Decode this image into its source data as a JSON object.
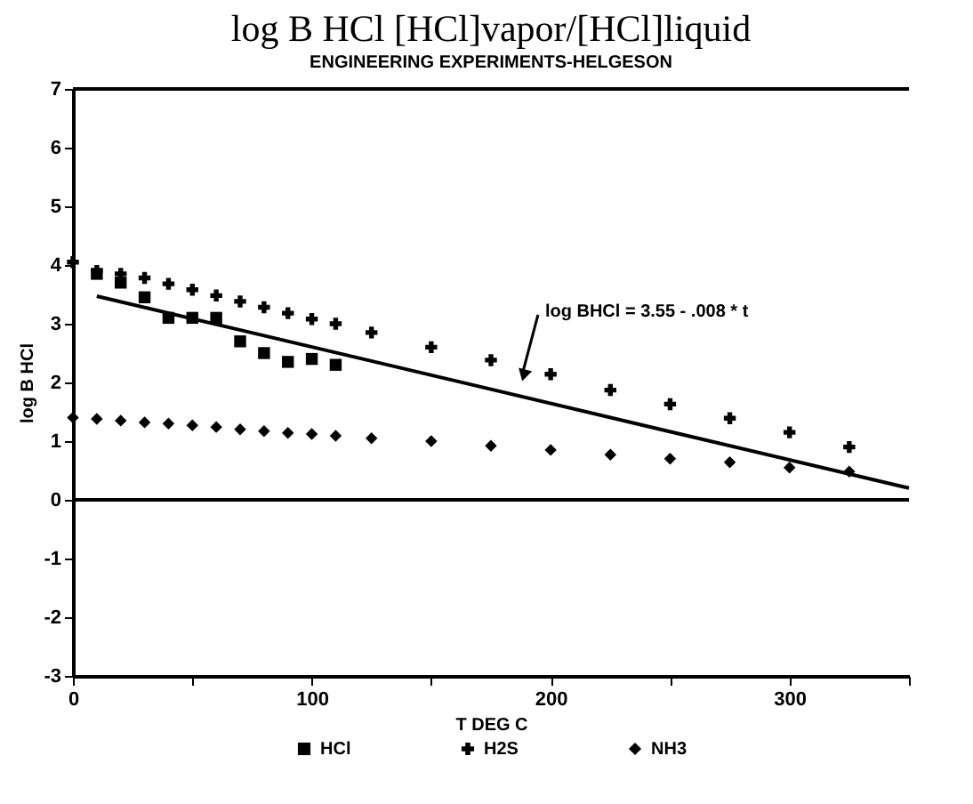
{
  "chart_data": {
    "type": "scatter",
    "title": "log B HCl    [HCl]vapor/[HCl]liquid",
    "subtitle": "ENGINEERING EXPERIMENTS-HELGESON",
    "xlabel": "T DEG C",
    "ylabel": "log B HCl",
    "annotations": [
      "log BHCl = 3.55 - .008 * t"
    ],
    "xlim": [
      0,
      350
    ],
    "xticks": [
      0,
      {
        "value": 50,
        "label": null
      },
      100,
      {
        "value": 150,
        "label": null
      },
      200,
      {
        "value": 250,
        "label": null
      },
      300,
      {
        "value": 350,
        "label": null
      }
    ],
    "ylim": [
      -3,
      7
    ],
    "yticks": [
      -3,
      -2,
      -1,
      0,
      1,
      2,
      3,
      4,
      5,
      6,
      7
    ],
    "ref_lines": [
      {
        "axis": "y",
        "value": 0,
        "label": null,
        "color": "#000000"
      }
    ],
    "grid": false,
    "legend": "bottom",
    "series": [
      {
        "name": "HCl",
        "color": "#000000",
        "marker": "square",
        "x": [
          10,
          20,
          30,
          40,
          50,
          60,
          70,
          80,
          90,
          100,
          110
        ],
        "values": [
          3.85,
          3.7,
          3.45,
          3.1,
          3.1,
          3.1,
          2.7,
          2.5,
          2.35,
          2.4,
          2.3
        ]
      },
      {
        "name": "H2S",
        "color": "#000000",
        "marker": "cross",
        "x": [
          0,
          10,
          20,
          30,
          40,
          50,
          60,
          70,
          80,
          90,
          100,
          110,
          125,
          150,
          175,
          200,
          225,
          250,
          275,
          300,
          325
        ],
        "values": [
          4.05,
          3.9,
          3.85,
          3.78,
          3.68,
          3.58,
          3.48,
          3.38,
          3.28,
          3.18,
          3.08,
          3.0,
          2.85,
          2.6,
          2.38,
          2.14,
          1.87,
          1.63,
          1.39,
          1.15,
          0.9
        ]
      },
      {
        "name": "NH3",
        "color": "#000000",
        "marker": "diamond",
        "x": [
          0,
          10,
          20,
          30,
          40,
          50,
          60,
          70,
          80,
          90,
          100,
          110,
          125,
          150,
          175,
          200,
          225,
          250,
          275,
          300,
          325
        ],
        "values": [
          1.4,
          1.38,
          1.35,
          1.32,
          1.3,
          1.27,
          1.24,
          1.2,
          1.17,
          1.14,
          1.12,
          1.09,
          1.05,
          1.0,
          0.92,
          0.85,
          0.77,
          0.7,
          0.64,
          0.55,
          0.48
        ]
      },
      {
        "type": "line",
        "color": "#000000",
        "marker": "none",
        "line_style": "solid",
        "x": [
          10,
          350
        ],
        "values": [
          3.47,
          0.2
        ]
      }
    ]
  }
}
